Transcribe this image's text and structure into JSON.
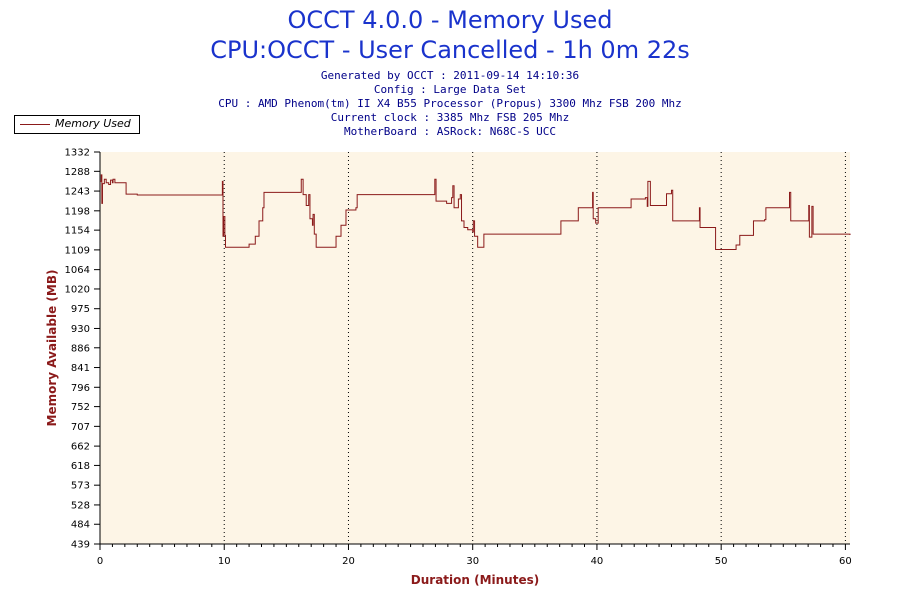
{
  "header": {
    "title_line1": "OCCT 4.0.0 - Memory Used",
    "title_line2": "CPU:OCCT - User Cancelled - 1h 0m 22s",
    "generated": "Generated by OCCT : 2011-09-14 14:10:36",
    "config": "Config : Large Data Set",
    "cpu": "CPU : AMD Phenom(tm) II X4 B55 Processor (Propus) 3300 Mhz FSB 200 Mhz",
    "clock": "Current clock : 3385 Mhz FSB 205 Mhz",
    "motherboard": "MotherBoard : ASRock: N68C-S UCC"
  },
  "colors": {
    "title": "#1a33cc",
    "info": "#000088",
    "series": "#8b1a1a",
    "plot_background": "#fdf5e6",
    "axis_title": "#8b1a1a"
  },
  "chart_data": {
    "type": "line",
    "title": "OCCT 4.0.0 - Memory Used",
    "subtitle": "CPU:OCCT - User Cancelled - 1h 0m 22s",
    "xlabel": "Duration (Minutes)",
    "ylabel": "Memory Available (MB)",
    "xlim": [
      0,
      60.37
    ],
    "ylim": [
      439,
      1332
    ],
    "x_ticks": [
      0,
      10,
      20,
      30,
      40,
      50,
      60
    ],
    "y_ticks": [
      439,
      484,
      528,
      573,
      618,
      662,
      707,
      752,
      796,
      841,
      886,
      930,
      975,
      1020,
      1064,
      1109,
      1154,
      1198,
      1243,
      1288,
      1332
    ],
    "grid": "vertical dotted at x ticks",
    "legend_position": "top-left",
    "series": [
      {
        "name": "Memory Used",
        "color": "#8b1a1a",
        "step": true,
        "points": [
          [
            0,
            1265
          ],
          [
            0.1,
            1280
          ],
          [
            0.15,
            1215
          ],
          [
            0.2,
            1260
          ],
          [
            0.35,
            1270
          ],
          [
            0.5,
            1262
          ],
          [
            0.7,
            1258
          ],
          [
            0.85,
            1268
          ],
          [
            1.0,
            1262
          ],
          [
            1.05,
            1270
          ],
          [
            1.2,
            1262
          ],
          [
            2.0,
            1262
          ],
          [
            2.1,
            1236
          ],
          [
            3.0,
            1234
          ],
          [
            9.8,
            1234
          ],
          [
            9.85,
            1265
          ],
          [
            9.9,
            1140
          ],
          [
            9.95,
            1185
          ],
          [
            10.05,
            1142
          ],
          [
            10.1,
            1115
          ],
          [
            11.5,
            1115
          ],
          [
            12.0,
            1122
          ],
          [
            12.5,
            1140
          ],
          [
            12.8,
            1175
          ],
          [
            13.1,
            1205
          ],
          [
            13.2,
            1240
          ],
          [
            16.1,
            1240
          ],
          [
            16.2,
            1270
          ],
          [
            16.35,
            1235
          ],
          [
            16.6,
            1210
          ],
          [
            16.8,
            1235
          ],
          [
            16.9,
            1180
          ],
          [
            17.1,
            1165
          ],
          [
            17.15,
            1190
          ],
          [
            17.25,
            1145
          ],
          [
            17.4,
            1115
          ],
          [
            18.9,
            1115
          ],
          [
            19.0,
            1140
          ],
          [
            19.4,
            1165
          ],
          [
            19.8,
            1200
          ],
          [
            20.6,
            1205
          ],
          [
            20.7,
            1235
          ],
          [
            26.9,
            1235
          ],
          [
            26.95,
            1270
          ],
          [
            27.05,
            1220
          ],
          [
            27.9,
            1215
          ],
          [
            28.3,
            1228
          ],
          [
            28.4,
            1255
          ],
          [
            28.5,
            1205
          ],
          [
            28.85,
            1225
          ],
          [
            29.0,
            1235
          ],
          [
            29.1,
            1175
          ],
          [
            29.3,
            1160
          ],
          [
            29.6,
            1155
          ],
          [
            30.0,
            1150
          ],
          [
            30.05,
            1175
          ],
          [
            30.15,
            1140
          ],
          [
            30.4,
            1115
          ],
          [
            30.9,
            1145
          ],
          [
            37.0,
            1145
          ],
          [
            37.1,
            1175
          ],
          [
            38.4,
            1175
          ],
          [
            38.5,
            1205
          ],
          [
            39.6,
            1205
          ],
          [
            39.65,
            1240
          ],
          [
            39.7,
            1180
          ],
          [
            39.9,
            1170
          ],
          [
            40.1,
            1205
          ],
          [
            42.7,
            1205
          ],
          [
            42.75,
            1225
          ],
          [
            43.9,
            1228
          ],
          [
            44.05,
            1208
          ],
          [
            44.1,
            1265
          ],
          [
            44.3,
            1210
          ],
          [
            45.5,
            1210
          ],
          [
            45.6,
            1237
          ],
          [
            46.0,
            1245
          ],
          [
            46.1,
            1175
          ],
          [
            48.2,
            1175
          ],
          [
            48.25,
            1205
          ],
          [
            48.3,
            1160
          ],
          [
            49.5,
            1160
          ],
          [
            49.55,
            1110
          ],
          [
            51.1,
            1110
          ],
          [
            51.2,
            1120
          ],
          [
            51.5,
            1142
          ],
          [
            52.5,
            1142
          ],
          [
            52.6,
            1175
          ],
          [
            53.5,
            1178
          ],
          [
            53.6,
            1205
          ],
          [
            55.4,
            1205
          ],
          [
            55.5,
            1240
          ],
          [
            55.6,
            1175
          ],
          [
            57.0,
            1175
          ],
          [
            57.05,
            1210
          ],
          [
            57.1,
            1138
          ],
          [
            57.3,
            1208
          ],
          [
            57.4,
            1145
          ],
          [
            60.37,
            1143
          ]
        ]
      }
    ]
  }
}
